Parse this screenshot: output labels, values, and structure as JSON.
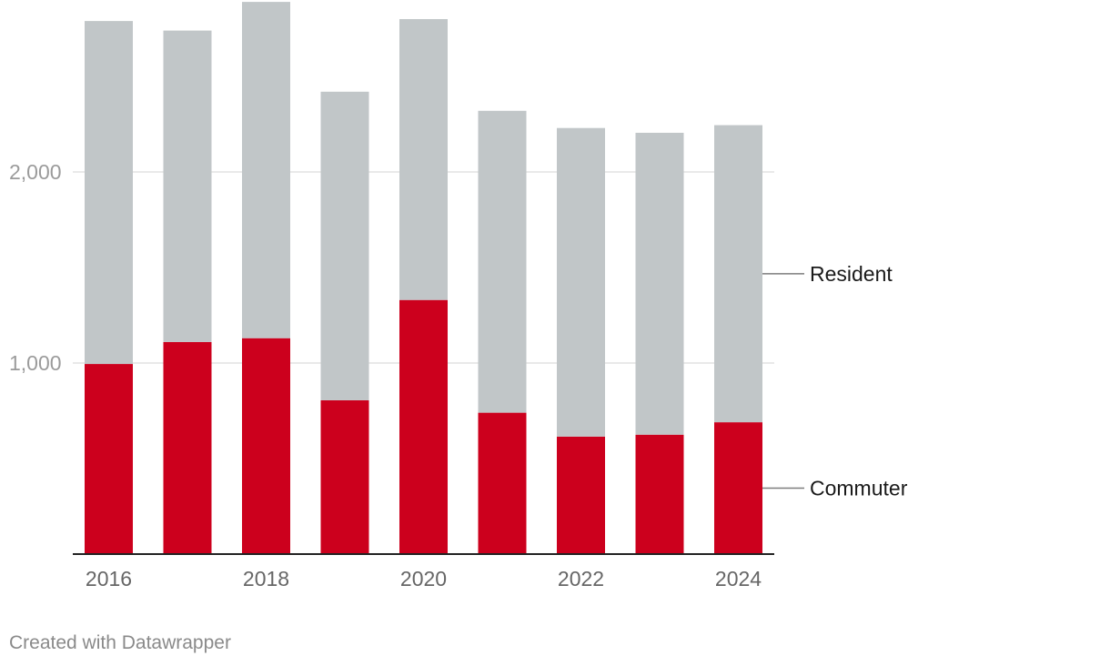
{
  "chart_data": {
    "type": "bar",
    "stacked": true,
    "categories": [
      "2016",
      "2017",
      "2018",
      "2019",
      "2020",
      "2021",
      "2022",
      "2023",
      "2024"
    ],
    "series": [
      {
        "name": "Commuter",
        "color": "#cc001d",
        "values": [
          995,
          1110,
          1130,
          805,
          1330,
          740,
          615,
          625,
          690
        ]
      },
      {
        "name": "Resident",
        "color": "#c1c6c8",
        "values": [
          1795,
          1630,
          1760,
          1615,
          1470,
          1580,
          1615,
          1580,
          1555
        ]
      }
    ],
    "x_tick_labels": [
      "2016",
      "",
      "2018",
      "",
      "2020",
      "",
      "2022",
      "",
      "2024"
    ],
    "y_ticks": [
      {
        "value": 1000,
        "label": "1,000"
      },
      {
        "value": 2000,
        "label": "2,000"
      }
    ],
    "ylim": [
      0,
      2850
    ],
    "legend_placement": "right (direct labels)",
    "title": "",
    "xlabel": "",
    "ylabel": ""
  },
  "footer": {
    "credit": "Created with Datawrapper"
  }
}
